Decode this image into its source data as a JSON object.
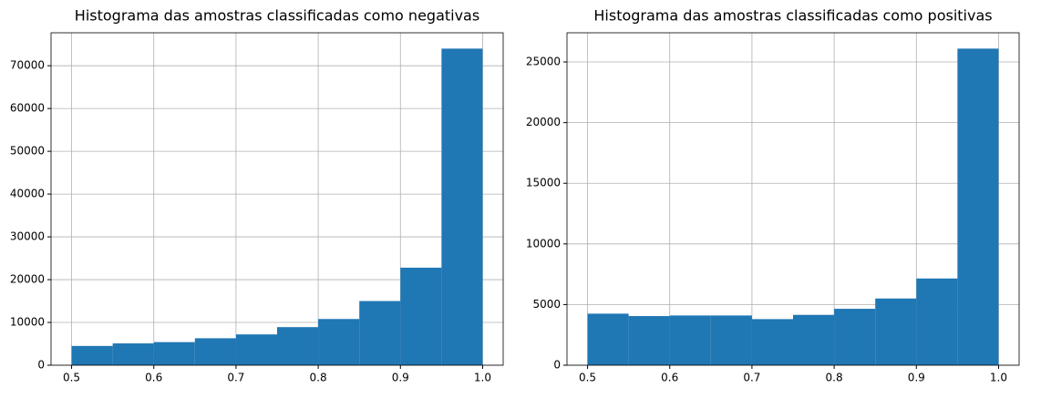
{
  "chart_data": [
    {
      "type": "histogram",
      "title": "Histograma das amostras classificadas como negativas",
      "bins": [
        0.5,
        0.55,
        0.6,
        0.65,
        0.7,
        0.75,
        0.8,
        0.85,
        0.9,
        0.95,
        1.0
      ],
      "values": [
        4500,
        5100,
        5400,
        6300,
        7200,
        8900,
        10800,
        15000,
        22800,
        74000
      ],
      "color": "#1f77b4",
      "xlim": [
        0.475,
        1.025
      ],
      "xticks": [
        0.5,
        0.6,
        0.7,
        0.8,
        0.9,
        {
          "value": 1.0,
          "label": "1.0"
        }
      ],
      "ylim": [
        0,
        77700
      ],
      "yticks": [
        0,
        10000,
        20000,
        30000,
        40000,
        50000,
        60000,
        70000
      ],
      "grid": true
    },
    {
      "type": "histogram",
      "title": "Histograma das amostras classificadas como positivas",
      "bins": [
        0.5,
        0.55,
        0.6,
        0.65,
        0.7,
        0.75,
        0.8,
        0.85,
        0.9,
        0.95,
        1.0
      ],
      "values": [
        4250,
        4050,
        4100,
        4100,
        3800,
        4150,
        4650,
        5500,
        7150,
        26100
      ],
      "color": "#1f77b4",
      "xlim": [
        0.475,
        1.025
      ],
      "xticks": [
        0.5,
        0.6,
        0.7,
        0.8,
        0.9,
        {
          "value": 1.0,
          "label": "1.0"
        }
      ],
      "ylim": [
        0,
        27405
      ],
      "yticks": [
        0,
        5000,
        10000,
        15000,
        20000,
        25000
      ],
      "grid": true
    }
  ]
}
